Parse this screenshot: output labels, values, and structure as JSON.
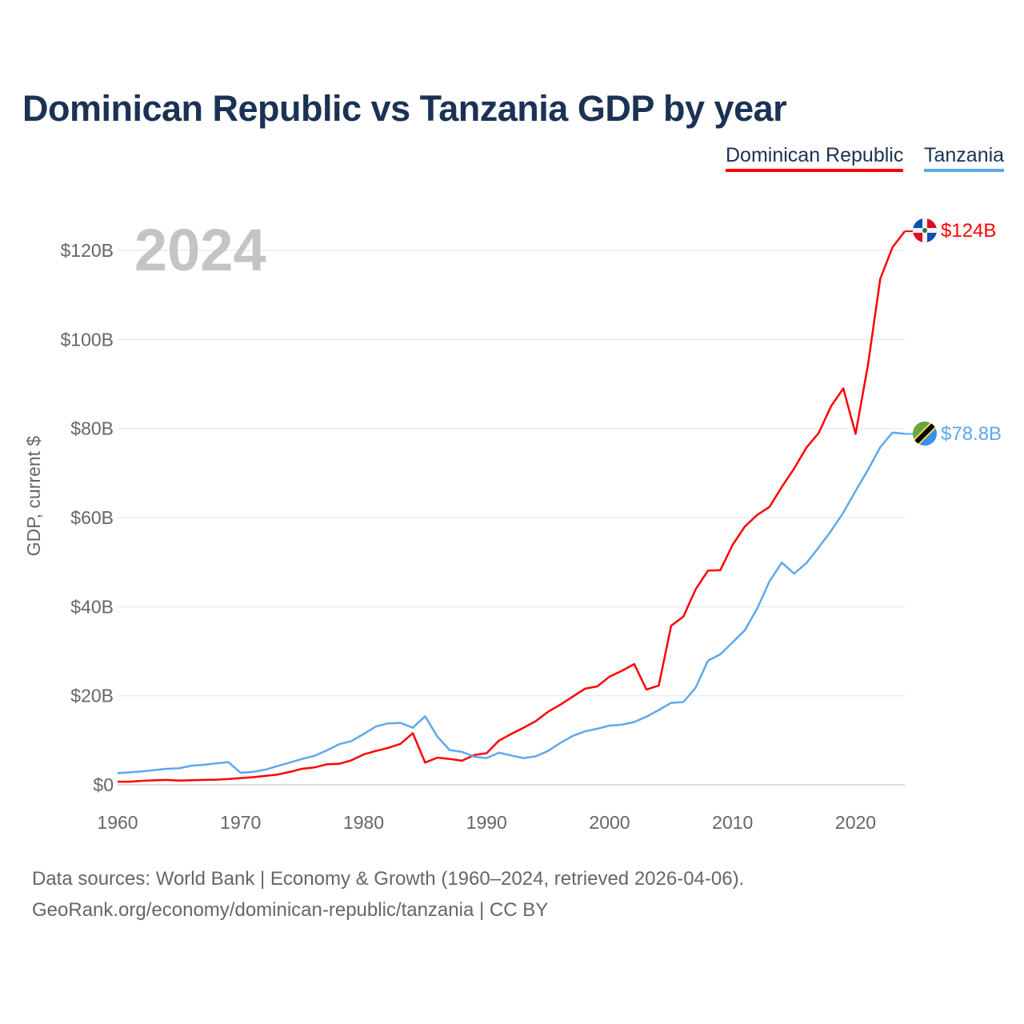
{
  "title": "Dominican Republic vs Tanzania GDP by year",
  "legend": [
    {
      "label": "Dominican Republic",
      "color": "#ff0000"
    },
    {
      "label": "Tanzania",
      "color": "#5ea8ec"
    }
  ],
  "year_label": "2024",
  "end_labels": {
    "dr": "$124B",
    "tz": "$78.8B"
  },
  "footer": {
    "line1": "Data sources: World Bank | Economy & Growth (1960–2024, retrieved 2026-04-06).",
    "line2": "GeoRank.org/economy/dominican-republic/tanzania | CC BY"
  },
  "chart_data": {
    "type": "line",
    "title": "Dominican Republic vs Tanzania GDP by year",
    "xlabel": "",
    "ylabel": "GDP, current $",
    "xlim": [
      1960,
      2024
    ],
    "ylim": [
      0,
      125
    ],
    "x_ticks": [
      1960,
      1970,
      1980,
      1990,
      2000,
      2010,
      2020
    ],
    "x_tick_labels": [
      "1960",
      "1970",
      "1980",
      "1990",
      "2000",
      "2010",
      "2020"
    ],
    "y_ticks": [
      0,
      20,
      40,
      60,
      80,
      100,
      120
    ],
    "y_tick_labels": [
      "$0",
      "$20B",
      "$40B",
      "$60B",
      "$80B",
      "$100B",
      "$120B"
    ],
    "grid": true,
    "legend_position": "top-right",
    "units": "billion USD",
    "x_start": 1960,
    "series": [
      {
        "name": "Dominican Republic",
        "color": "#ff0000",
        "values": [
          0.7,
          0.7,
          0.9,
          1.0,
          1.1,
          0.95,
          1.05,
          1.1,
          1.15,
          1.3,
          1.5,
          1.7,
          2.0,
          2.3,
          2.9,
          3.6,
          3.9,
          4.6,
          4.7,
          5.5,
          6.8,
          7.6,
          8.3,
          9.2,
          11.6,
          5.0,
          6.1,
          5.8,
          5.4,
          6.7,
          7.1,
          9.9,
          11.4,
          12.8,
          14.3,
          16.4,
          18.0,
          19.8,
          21.6,
          22.1,
          24.3,
          25.6,
          27.1,
          21.4,
          22.3,
          35.7,
          37.8,
          43.9,
          48.1,
          48.2,
          53.9,
          58.0,
          60.6,
          62.4,
          66.9,
          71.0,
          75.7,
          79.0,
          85.0,
          89.0,
          78.8,
          94.2,
          113.6,
          120.7,
          124.3
        ]
      },
      {
        "name": "Tanzania",
        "color": "#5ea8ec",
        "values": [
          2.6,
          2.8,
          3.0,
          3.3,
          3.6,
          3.7,
          4.3,
          4.5,
          4.8,
          5.1,
          2.7,
          2.9,
          3.4,
          4.2,
          5.0,
          5.8,
          6.5,
          7.7,
          9.1,
          9.8,
          11.4,
          13.1,
          13.8,
          13.9,
          12.8,
          15.4,
          10.8,
          7.8,
          7.4,
          6.3,
          6.0,
          7.2,
          6.6,
          6.0,
          6.4,
          7.6,
          9.4,
          11.0,
          12.0,
          12.6,
          13.3,
          13.5,
          14.1,
          15.3,
          16.8,
          18.4,
          18.6,
          21.8,
          27.9,
          29.3,
          32.0,
          34.7,
          39.6,
          45.7,
          49.9,
          47.4,
          49.8,
          53.3,
          57.0,
          61.1,
          66.0,
          70.7,
          75.8,
          79.1,
          78.8
        ]
      }
    ]
  }
}
